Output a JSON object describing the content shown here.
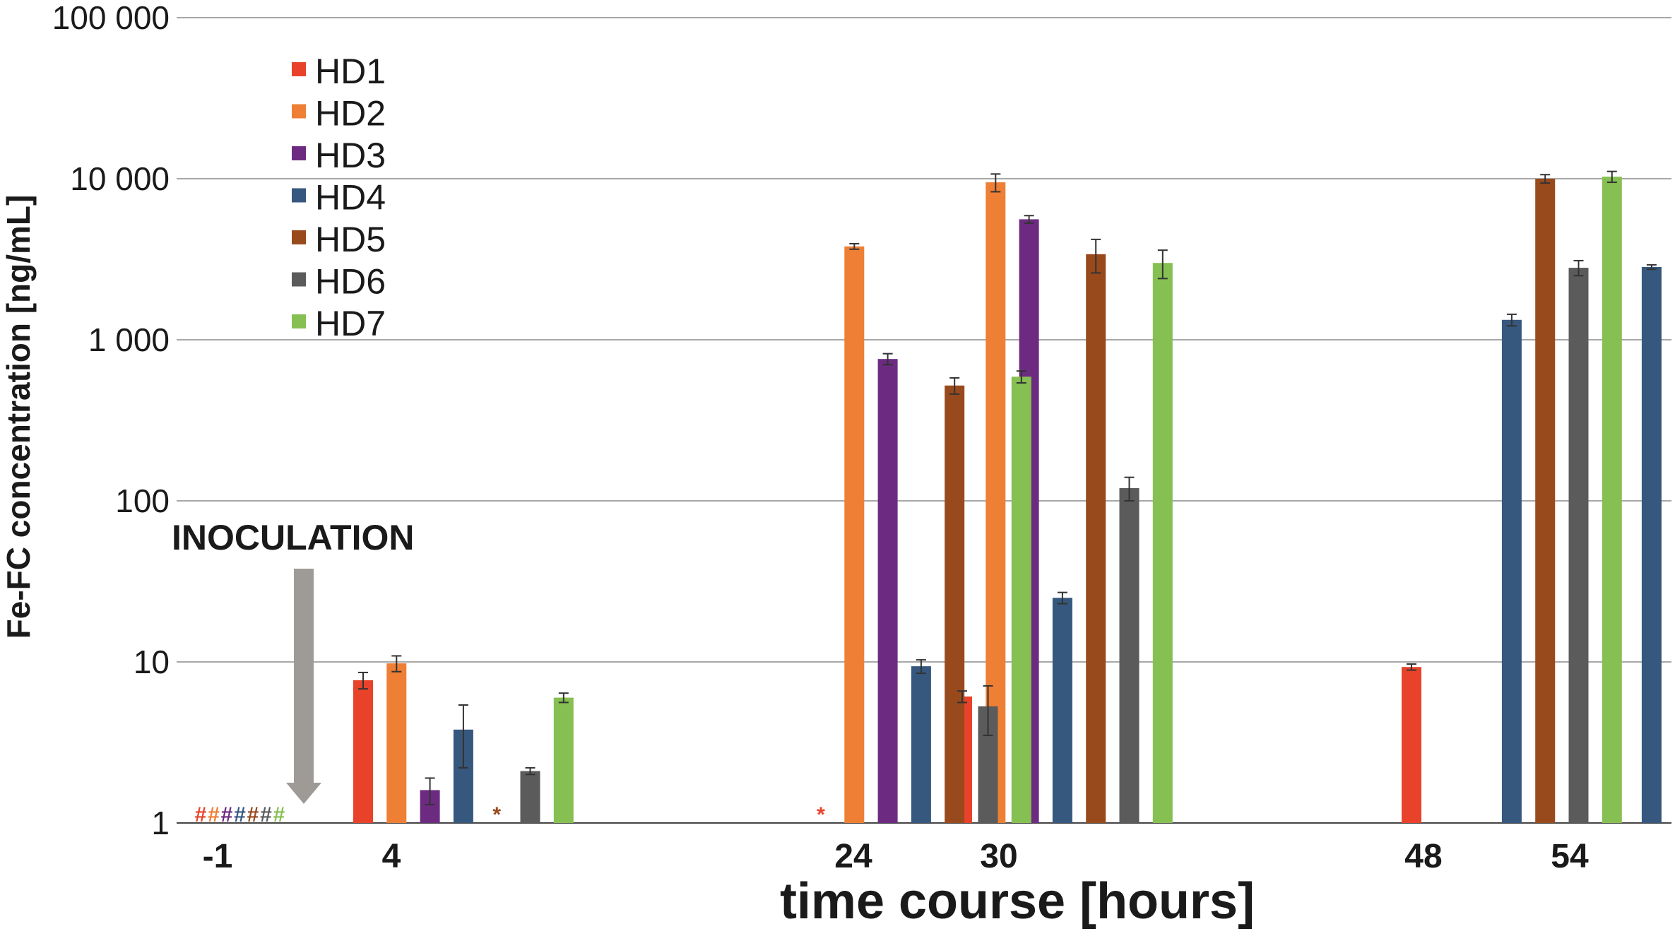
{
  "chart_data": {
    "type": "bar",
    "xlabel": "time course [hours]",
    "ylabel": "Fe-FC concentration [ng/mL]",
    "yscale": "log",
    "ylim": [
      1,
      100000
    ],
    "yticks": [
      1,
      10,
      100,
      1000,
      10000,
      100000
    ],
    "ytick_labels": [
      "1",
      "10",
      "100",
      "1 000",
      "10 000",
      "100 000"
    ],
    "categories": [
      "-1",
      "4",
      "24",
      "30",
      "48",
      "54"
    ],
    "grid": true,
    "legend_position": "top-left",
    "series": [
      {
        "name": "HD1",
        "color": "#e8432a",
        "values": [
          null,
          7.7,
          null,
          6.1,
          9.3,
          null
        ],
        "errors": [
          null,
          0.9,
          null,
          0.5,
          0.4,
          null
        ],
        "markers": [
          "#",
          null,
          "*",
          null,
          null,
          null
        ]
      },
      {
        "name": "HD2",
        "color": "#ee7f35",
        "values": [
          null,
          9.8,
          3800,
          9500,
          null,
          null
        ],
        "errors": [
          null,
          1.1,
          150,
          1200,
          null,
          null
        ],
        "markers": [
          "#",
          null,
          null,
          null,
          null,
          null
        ]
      },
      {
        "name": "HD3",
        "color": "#6c2b81",
        "values": [
          null,
          1.6,
          760,
          5600,
          null,
          null
        ],
        "errors": [
          null,
          0.3,
          60,
          300,
          null,
          null
        ],
        "markers": [
          "#",
          null,
          null,
          null,
          null,
          null
        ]
      },
      {
        "name": "HD4",
        "color": "#36587e",
        "values": [
          null,
          3.8,
          9.4,
          25,
          1330,
          2830
        ],
        "errors": [
          null,
          1.6,
          0.9,
          2,
          110,
          90
        ],
        "markers": [
          "#",
          null,
          null,
          null,
          null,
          null
        ]
      },
      {
        "name": "HD5",
        "color": "#994a1d",
        "values": [
          null,
          null,
          520,
          3400,
          10000,
          20200
        ],
        "errors": [
          null,
          null,
          60,
          800,
          600,
          700
        ],
        "markers": [
          "#",
          "*",
          null,
          null,
          null,
          null
        ]
      },
      {
        "name": "HD6",
        "color": "#5b5b5b",
        "values": [
          null,
          2.1,
          5.3,
          120,
          2800,
          3800
        ],
        "errors": [
          null,
          0.1,
          1.8,
          20,
          300,
          400
        ],
        "markers": [
          "#",
          null,
          null,
          null,
          null,
          null
        ]
      },
      {
        "name": "HD7",
        "color": "#86c052",
        "values": [
          null,
          6.0,
          590,
          3000,
          10300,
          22500
        ],
        "errors": [
          null,
          0.4,
          50,
          600,
          800,
          4000
        ],
        "markers": [
          "#",
          null,
          null,
          null,
          null,
          null
        ]
      }
    ],
    "annotations": [
      {
        "text": "INOCULATION",
        "arrow": "down",
        "arrow_color": "#9e9a96"
      }
    ]
  }
}
